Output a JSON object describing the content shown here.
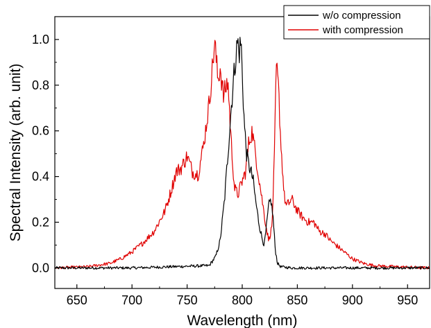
{
  "chart_data": {
    "type": "line",
    "xlabel": "Wavelength (nm)",
    "ylabel": "Spectral Intensity (arb. unit)",
    "xlim": [
      630,
      970
    ],
    "ylim": [
      -0.09,
      1.1
    ],
    "xticks": [
      650,
      700,
      750,
      800,
      850,
      900,
      950
    ],
    "xtick_labels": [
      "650",
      "700",
      "750",
      "800",
      "850",
      "900",
      "950"
    ],
    "yticks": [
      0.0,
      0.2,
      0.4,
      0.6,
      0.8,
      1.0
    ],
    "ytick_labels": [
      "0.0",
      "0.2",
      "0.4",
      "0.6",
      "0.8",
      "1.0"
    ],
    "grid": false,
    "legend_position": "top-right",
    "series": [
      {
        "name": "w/o compression",
        "color": "#000000",
        "x": [
          630,
          700,
          770,
          776,
          780,
          784,
          787,
          790,
          792,
          794,
          796,
          797,
          798,
          799,
          800,
          802,
          804,
          806,
          808,
          810,
          812,
          815,
          818,
          820,
          822,
          824,
          826,
          828,
          830,
          832,
          835,
          845,
          870,
          970
        ],
        "y": [
          0.0,
          0.0,
          0.01,
          0.05,
          0.12,
          0.3,
          0.5,
          0.7,
          0.82,
          0.92,
          1.0,
          0.93,
          0.97,
          0.99,
          0.85,
          0.62,
          0.5,
          0.45,
          0.42,
          0.38,
          0.3,
          0.2,
          0.13,
          0.1,
          0.18,
          0.27,
          0.3,
          0.22,
          0.08,
          0.02,
          0.005,
          0.0,
          0.0,
          0.0
        ]
      },
      {
        "name": "with compression",
        "color": "#e00000",
        "x": [
          630,
          660,
          680,
          690,
          700,
          710,
          720,
          730,
          735,
          740,
          745,
          750,
          755,
          760,
          765,
          770,
          773,
          775,
          778,
          780,
          783,
          787,
          790,
          793,
          796,
          800,
          803,
          806,
          809,
          812,
          815,
          818,
          821,
          824,
          827,
          829,
          831,
          833,
          835,
          838,
          840,
          845,
          850,
          855,
          860,
          865,
          870,
          875,
          880,
          885,
          890,
          895,
          900,
          910,
          920,
          940,
          970
        ],
        "y": [
          0.0,
          0.005,
          0.02,
          0.04,
          0.07,
          0.11,
          0.16,
          0.25,
          0.33,
          0.42,
          0.44,
          0.49,
          0.42,
          0.41,
          0.54,
          0.72,
          0.88,
          0.99,
          0.82,
          0.88,
          0.75,
          0.82,
          0.55,
          0.35,
          0.32,
          0.38,
          0.42,
          0.55,
          0.6,
          0.5,
          0.4,
          0.3,
          0.2,
          0.12,
          0.18,
          0.45,
          0.88,
          0.78,
          0.55,
          0.32,
          0.27,
          0.3,
          0.25,
          0.22,
          0.2,
          0.2,
          0.16,
          0.15,
          0.12,
          0.1,
          0.08,
          0.06,
          0.04,
          0.02,
          0.01,
          0.005,
          0.0
        ]
      }
    ]
  }
}
